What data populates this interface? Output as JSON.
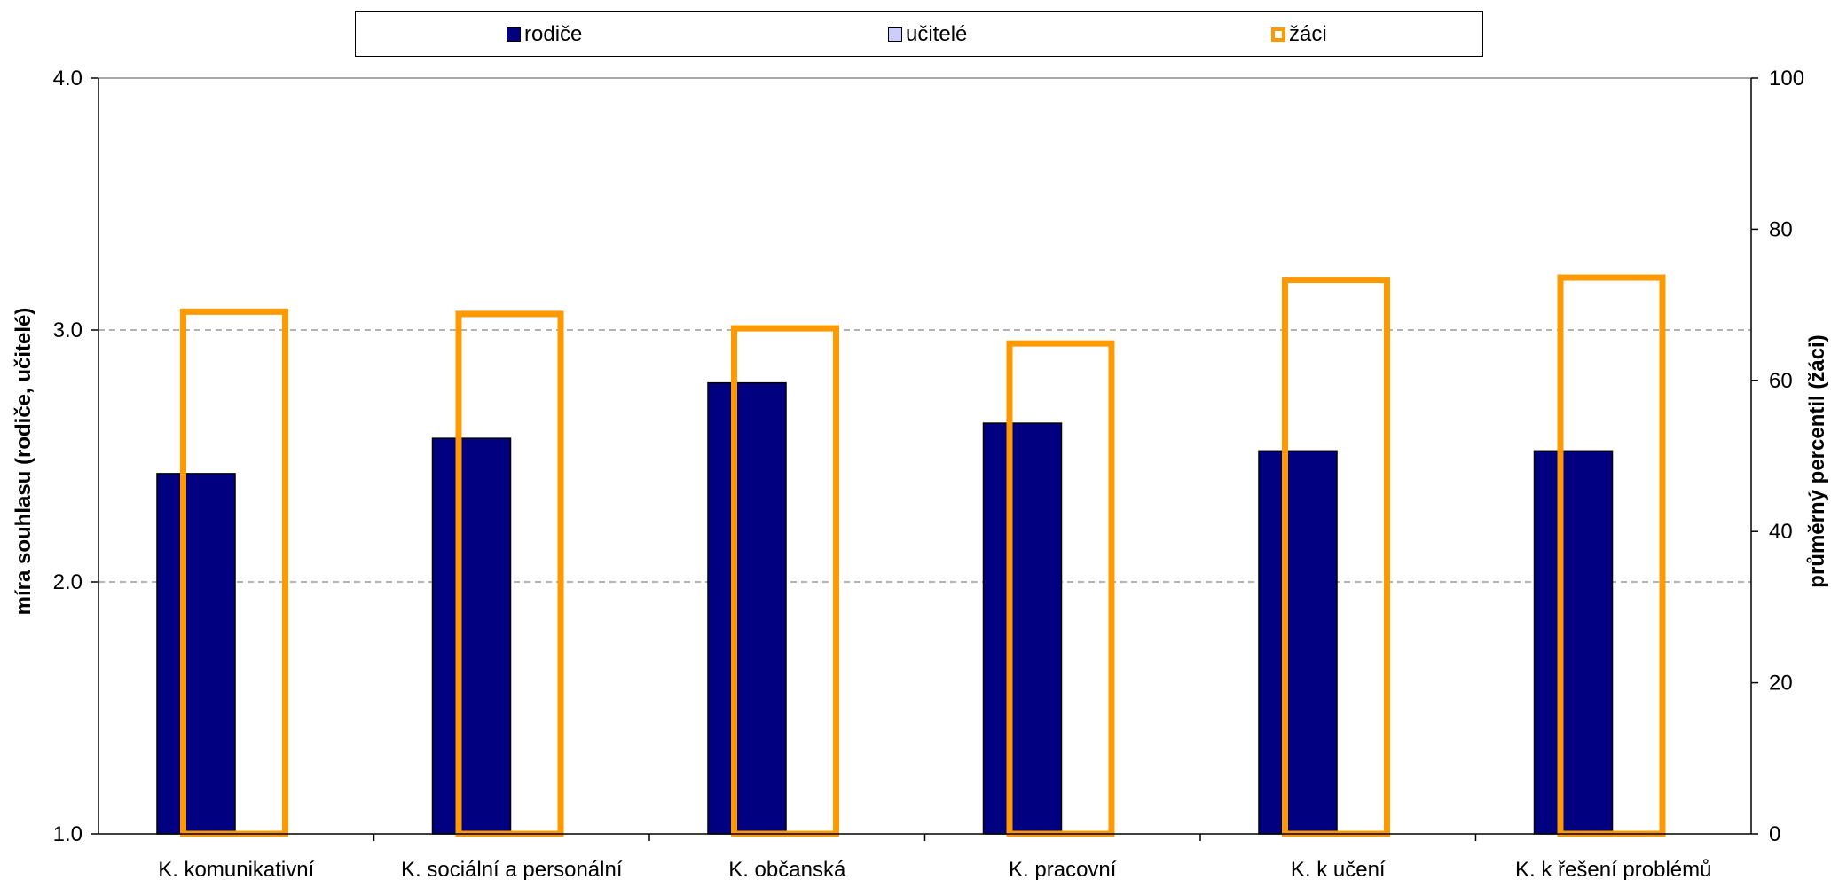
{
  "chart_data": {
    "type": "bar",
    "categories": [
      "K. komunikativní",
      "K. sociální a personální",
      "K. občanská",
      "K. pracovní",
      "K. k učení",
      "K. k řešení problémů"
    ],
    "series": [
      {
        "name": "rodiče",
        "axis": "left",
        "values": [
          2.43,
          2.57,
          2.79,
          2.63,
          2.52,
          2.52
        ],
        "color": "#000080",
        "fill": "solid"
      },
      {
        "name": "učitelé",
        "axis": "left",
        "values": [
          null,
          null,
          null,
          null,
          null,
          null
        ],
        "color": "#ccccff",
        "fill": "solid"
      },
      {
        "name": "žáci",
        "axis": "right",
        "values": [
          69.5,
          69.2,
          67.3,
          65.3,
          73.7,
          74.0
        ],
        "color": "#ff9900",
        "fill": "outline"
      }
    ],
    "ylabel_left": "míra souhlasu (rodiče, učitelé)",
    "ylabel_right": "průměrný percentil (žáci)",
    "ylim_left": [
      1.0,
      4.0
    ],
    "ylim_right": [
      0,
      100
    ],
    "yticks_left": [
      "1.0",
      "2.0",
      "3.0",
      "4.0"
    ],
    "yticks_right": [
      "0",
      "20",
      "40",
      "60",
      "80",
      "100"
    ],
    "grid": "dashed horizontal at left-axis ticks",
    "legend_position": "top"
  }
}
